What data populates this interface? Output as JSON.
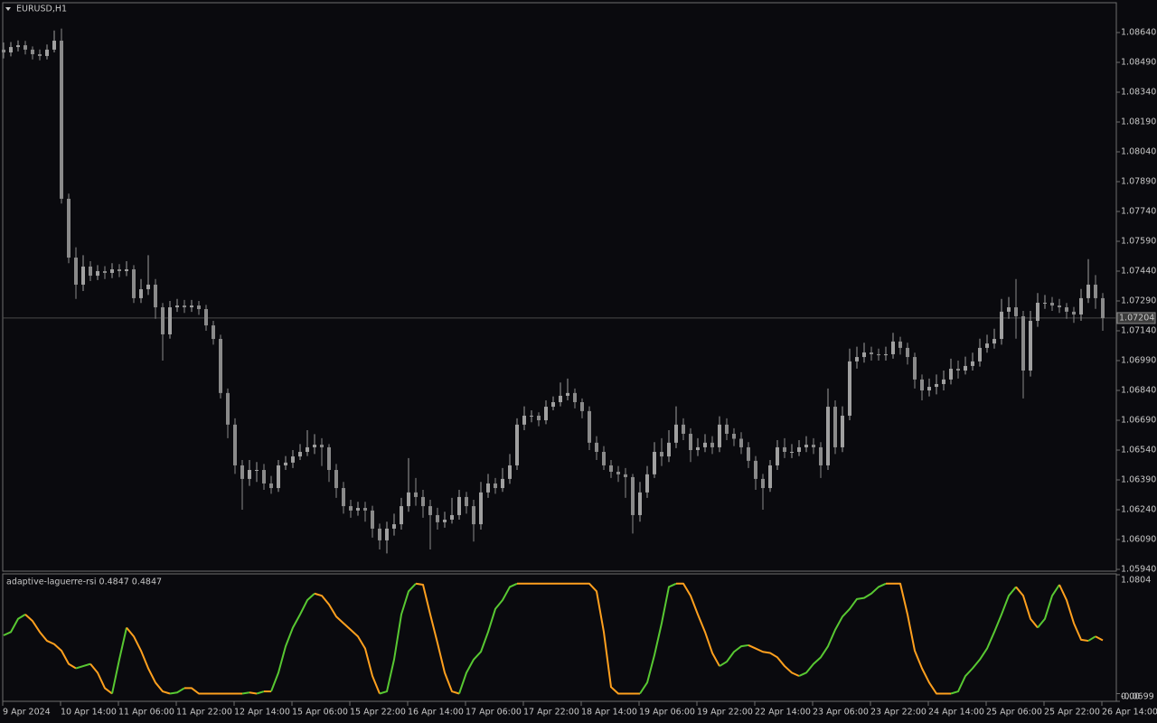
{
  "chart_data": [
    {
      "type": "candlestick",
      "title": "EURUSD,H1",
      "open": [
        1.08554,
        1.0854,
        1.08567,
        1.08576,
        1.08554,
        1.08531,
        1.08522,
        1.08554,
        1.08599,
        1.07804,
        1.07508,
        1.07372,
        1.07463,
        1.07417,
        1.0744,
        1.07431,
        1.07449,
        1.0744,
        1.07449,
        1.07304,
        1.07349,
        1.07372,
        1.07258,
        1.07122,
        1.07258,
        1.07267,
        1.07258,
        1.07267,
        1.07249,
        1.07167,
        1.07099,
        1.06827,
        1.06668,
        1.06463,
        1.06395,
        1.0644,
        1.0644,
        1.06372,
        1.06349,
        1.06463,
        1.06477,
        1.06508,
        1.06531,
        1.06554,
        1.06567,
        1.06554,
        1.0644,
        1.06349,
        1.06258,
        1.06236,
        1.06249,
        1.06236,
        1.06145,
        1.06086,
        1.06145,
        1.06167,
        1.06258,
        1.06327,
        1.06304,
        1.06258,
        1.06213,
        1.06177,
        1.0619,
        1.06213,
        1.06304,
        1.06258,
        1.06167,
        1.06327,
        1.06372,
        1.06349,
        1.06395,
        1.06463,
        1.06668,
        1.06713,
        1.06713,
        1.0669,
        1.06758,
        1.06781,
        1.06813,
        1.06827,
        1.06781,
        1.06736,
        1.06577,
        1.06531,
        1.06463,
        1.06431,
        1.06418,
        1.06404,
        1.06213,
        1.06327,
        1.06418,
        1.06531,
        1.06508,
        1.06577,
        1.06668,
        1.06622,
        1.0654,
        1.06554,
        1.06577,
        1.06554,
        1.06668,
        1.06622,
        1.06597,
        1.06554,
        1.06486,
        1.06395,
        1.06349,
        1.06463,
        1.06554,
        1.06531,
        1.06531,
        1.06554,
        1.06567,
        1.06554,
        1.06463,
        1.06758,
        1.06554,
        1.06713,
        1.06986,
        1.07008,
        1.07031,
        1.07022,
        1.07017,
        1.07022,
        1.07086,
        1.07054,
        1.07008,
        1.06895,
        1.0684,
        1.06858,
        1.06872,
        1.06895,
        1.06949,
        1.0694,
        1.06963,
        1.06986,
        1.07054,
        1.07076,
        1.07099,
        1.07236,
        1.07258,
        1.07213,
        1.0694,
        1.0719,
        1.07281,
        1.07281,
        1.07267,
        1.07258,
        1.07236,
        1.07222,
        1.07304,
        1.07372,
        1.07304
      ],
      "high": [
        1.0859,
        1.08592,
        1.086,
        1.08598,
        1.0857,
        1.08555,
        1.0858,
        1.0865,
        1.0866,
        1.0783,
        1.0756,
        1.0752,
        1.0749,
        1.0747,
        1.07465,
        1.0748,
        1.07475,
        1.0749,
        1.0747,
        1.074,
        1.0752,
        1.074,
        1.0728,
        1.0729,
        1.073,
        1.07295,
        1.07295,
        1.0729,
        1.0727,
        1.0719,
        1.0712,
        1.0685,
        1.067,
        1.0649,
        1.0649,
        1.0648,
        1.0647,
        1.0641,
        1.0649,
        1.0651,
        1.0654,
        1.0657,
        1.0664,
        1.0662,
        1.066,
        1.0657,
        1.0647,
        1.0638,
        1.0629,
        1.0628,
        1.0628,
        1.0626,
        1.0617,
        1.0618,
        1.0622,
        1.063,
        1.065,
        1.064,
        1.0634,
        1.0629,
        1.0625,
        1.0623,
        1.063,
        1.0634,
        1.0633,
        1.0629,
        1.0638,
        1.0642,
        1.064,
        1.0645,
        1.0652,
        1.067,
        1.0676,
        1.0674,
        1.0673,
        1.0679,
        1.0681,
        1.0688,
        1.069,
        1.0685,
        1.068,
        1.0676,
        1.0661,
        1.0656,
        1.0649,
        1.0646,
        1.0645,
        1.0642,
        1.0638,
        1.0646,
        1.0658,
        1.066,
        1.0664,
        1.0676,
        1.067,
        1.0665,
        1.066,
        1.0662,
        1.0661,
        1.0671,
        1.067,
        1.0665,
        1.0663,
        1.0658,
        1.0651,
        1.0642,
        1.0649,
        1.0659,
        1.066,
        1.0657,
        1.0659,
        1.0661,
        1.066,
        1.0658,
        1.0685,
        1.0679,
        1.0676,
        1.0705,
        1.0706,
        1.0708,
        1.0706,
        1.0705,
        1.0706,
        1.0713,
        1.0711,
        1.0708,
        1.0703,
        1.0692,
        1.069,
        1.0692,
        1.0694,
        1.07,
        1.0699,
        1.0701,
        1.0703,
        1.071,
        1.0712,
        1.0715,
        1.073,
        1.0731,
        1.074,
        1.0724,
        1.0724,
        1.0733,
        1.0732,
        1.0731,
        1.073,
        1.0728,
        1.0726,
        1.0735,
        1.075,
        1.0742,
        1.0733
      ],
      "low": [
        1.0851,
        1.0852,
        1.08545,
        1.0853,
        1.08505,
        1.085,
        1.08505,
        1.0854,
        1.0778,
        1.0748,
        1.073,
        1.0734,
        1.0739,
        1.07395,
        1.074,
        1.07405,
        1.0741,
        1.07415,
        1.0728,
        1.0728,
        1.0732,
        1.072,
        1.0699,
        1.071,
        1.07235,
        1.0723,
        1.07235,
        1.0722,
        1.0714,
        1.0707,
        1.068,
        1.066,
        1.0642,
        1.0624,
        1.0636,
        1.0638,
        1.0634,
        1.0632,
        1.0633,
        1.0644,
        1.0645,
        1.0649,
        1.0651,
        1.0652,
        1.0646,
        1.0638,
        1.063,
        1.0622,
        1.062,
        1.0621,
        1.0618,
        1.061,
        1.0604,
        1.0602,
        1.0611,
        1.0614,
        1.0623,
        1.0626,
        1.062,
        1.0604,
        1.0614,
        1.0615,
        1.0617,
        1.0619,
        1.0622,
        1.0608,
        1.0614,
        1.063,
        1.0632,
        1.0633,
        1.0637,
        1.0644,
        1.0664,
        1.0668,
        1.0666,
        1.0667,
        1.0674,
        1.0676,
        1.0679,
        1.0675,
        1.067,
        1.0654,
        1.0649,
        1.0644,
        1.064,
        1.0638,
        1.063,
        1.0612,
        1.0618,
        1.063,
        1.064,
        1.0646,
        1.0648,
        1.0655,
        1.0659,
        1.0648,
        1.0651,
        1.0653,
        1.0652,
        1.0653,
        1.0659,
        1.0656,
        1.0652,
        1.0645,
        1.0634,
        1.0624,
        1.0633,
        1.0644,
        1.065,
        1.065,
        1.0651,
        1.0653,
        1.0652,
        1.064,
        1.0644,
        1.0652,
        1.0653,
        1.0669,
        1.0695,
        1.0698,
        1.0699,
        1.0699,
        1.0699,
        1.07,
        1.0702,
        1.0697,
        1.0685,
        1.0679,
        1.0681,
        1.0682,
        1.0684,
        1.0687,
        1.069,
        1.0692,
        1.0694,
        1.0696,
        1.0703,
        1.0705,
        1.0707,
        1.072,
        1.071,
        1.068,
        1.0691,
        1.0716,
        1.0725,
        1.0724,
        1.0723,
        1.072,
        1.0718,
        1.0719,
        1.0728,
        1.0725,
        1.0714
      ],
      "close": [
        1.0854,
        1.08567,
        1.08576,
        1.08554,
        1.08531,
        1.08522,
        1.08554,
        1.08599,
        1.07804,
        1.07508,
        1.07372,
        1.07463,
        1.07417,
        1.0744,
        1.07431,
        1.07449,
        1.0744,
        1.07449,
        1.07304,
        1.07349,
        1.07372,
        1.07258,
        1.07122,
        1.07258,
        1.07267,
        1.07258,
        1.07267,
        1.07249,
        1.07167,
        1.07099,
        1.06827,
        1.06668,
        1.06463,
        1.06395,
        1.0644,
        1.0644,
        1.06372,
        1.06349,
        1.06463,
        1.06477,
        1.06508,
        1.06531,
        1.06554,
        1.06567,
        1.06554,
        1.0644,
        1.06349,
        1.06258,
        1.06236,
        1.06249,
        1.06236,
        1.06145,
        1.06086,
        1.06145,
        1.06167,
        1.06258,
        1.06327,
        1.06304,
        1.06258,
        1.06213,
        1.06177,
        1.0619,
        1.06213,
        1.06304,
        1.06258,
        1.06167,
        1.06327,
        1.06372,
        1.06349,
        1.06395,
        1.06463,
        1.06668,
        1.06713,
        1.06713,
        1.0669,
        1.06758,
        1.06781,
        1.06813,
        1.06827,
        1.06781,
        1.06736,
        1.06577,
        1.06531,
        1.06463,
        1.06431,
        1.06418,
        1.06404,
        1.06213,
        1.06327,
        1.06418,
        1.06531,
        1.06508,
        1.06577,
        1.06668,
        1.06622,
        1.0654,
        1.06554,
        1.06577,
        1.06554,
        1.06668,
        1.06622,
        1.06597,
        1.06554,
        1.06486,
        1.06395,
        1.06349,
        1.06463,
        1.06554,
        1.06531,
        1.06531,
        1.06554,
        1.06567,
        1.06554,
        1.06463,
        1.06758,
        1.06554,
        1.06713,
        1.06986,
        1.07008,
        1.07031,
        1.07022,
        1.07017,
        1.07022,
        1.07086,
        1.07054,
        1.07008,
        1.06895,
        1.0684,
        1.06858,
        1.06872,
        1.06895,
        1.06949,
        1.0694,
        1.06963,
        1.06986,
        1.07054,
        1.07076,
        1.07099,
        1.07236,
        1.07258,
        1.07213,
        1.0694,
        1.0719,
        1.07281,
        1.07281,
        1.07267,
        1.07258,
        1.07236,
        1.07222,
        1.07304,
        1.07372,
        1.07304,
        1.07204
      ],
      "colors": {
        "up": "#a0a0a0",
        "down": "#8a8a8a"
      },
      "current_price": 1.07204,
      "ylim": [
        1.05931,
        1.0879
      ],
      "yticks": [
        {
          "value": 1.0864,
          "label": "1.08640"
        },
        {
          "value": 1.0849,
          "label": "1.08490"
        },
        {
          "value": 1.0834,
          "label": "1.08340"
        },
        {
          "value": 1.0819,
          "label": "1.08190"
        },
        {
          "value": 1.0804,
          "label": "1.08040"
        },
        {
          "value": 1.0789,
          "label": "1.07890"
        },
        {
          "value": 1.0774,
          "label": "1.07740"
        },
        {
          "value": 1.0759,
          "label": "1.07590"
        },
        {
          "value": 1.0744,
          "label": "1.07440"
        },
        {
          "value": 1.0729,
          "label": "1.07290"
        },
        {
          "value": 1.0714,
          "label": "1.07140"
        },
        {
          "value": 1.0699,
          "label": "1.06990"
        },
        {
          "value": 1.0684,
          "label": "1.06840"
        },
        {
          "value": 1.0669,
          "label": "1.06690"
        },
        {
          "value": 1.0654,
          "label": "1.06540"
        },
        {
          "value": 1.0639,
          "label": "1.06390"
        },
        {
          "value": 1.0624,
          "label": "1.06240"
        },
        {
          "value": 1.0609,
          "label": "1.06090"
        },
        {
          "value": 1.0594,
          "label": "1.05940"
        }
      ],
      "xticks": [
        {
          "value": 0,
          "label": "9 Apr 2024"
        },
        {
          "value": 8,
          "label": "10 Apr 14:00"
        },
        {
          "value": 16,
          "label": "11 Apr 06:00"
        },
        {
          "value": 24,
          "label": "11 Apr 22:00"
        },
        {
          "value": 32,
          "label": "12 Apr 14:00"
        },
        {
          "value": 40,
          "label": "15 Apr 06:00"
        },
        {
          "value": 48,
          "label": "15 Apr 22:00"
        },
        {
          "value": 56,
          "label": "16 Apr 14:00"
        },
        {
          "value": 64,
          "label": "17 Apr 06:00"
        },
        {
          "value": 72,
          "label": "17 Apr 22:00"
        },
        {
          "value": 80,
          "label": "18 Apr 14:00"
        },
        {
          "value": 88,
          "label": "19 Apr 06:00"
        },
        {
          "value": 96,
          "label": "19 Apr 22:00"
        },
        {
          "value": 104,
          "label": "22 Apr 14:00"
        },
        {
          "value": 112,
          "label": "23 Apr 06:00"
        },
        {
          "value": 120,
          "label": "23 Apr 22:00"
        },
        {
          "value": 128,
          "label": "24 Apr 14:00"
        },
        {
          "value": 136,
          "label": "25 Apr 06:00"
        },
        {
          "value": 144,
          "label": "25 Apr 22:00"
        },
        {
          "value": 152,
          "label": "26 Apr 14:00"
        }
      ]
    },
    {
      "type": "line",
      "title": "adaptive-laguerre-rsi 0.4847 0.4847",
      "values": [
        0.53,
        0.56,
        0.68,
        0.72,
        0.66,
        0.56,
        0.48,
        0.45,
        0.39,
        0.27,
        0.23,
        0.25,
        0.27,
        0.19,
        0.05,
        0,
        0.31,
        0.6,
        0.52,
        0.39,
        0.23,
        0.1,
        0.02,
        0,
        0.01,
        0.05,
        0.05,
        0,
        0,
        0,
        0,
        0,
        0,
        0,
        0.01,
        0,
        0.02,
        0.02,
        0.19,
        0.43,
        0.6,
        0.72,
        0.85,
        0.91,
        0.89,
        0.81,
        0.7,
        0.64,
        0.58,
        0.52,
        0.41,
        0.16,
        0,
        0.02,
        0.31,
        0.72,
        0.93,
        1,
        0.99,
        0.72,
        0.46,
        0.19,
        0.02,
        0,
        0.19,
        0.31,
        0.38,
        0.56,
        0.77,
        0.85,
        0.97,
        1,
        1,
        1,
        1,
        1,
        1,
        1,
        1,
        1,
        1,
        1,
        0.93,
        0.56,
        0.06,
        0,
        0,
        0,
        0,
        0.1,
        0.35,
        0.64,
        0.97,
        1,
        1,
        0.89,
        0.72,
        0.56,
        0.37,
        0.25,
        0.29,
        0.38,
        0.43,
        0.44,
        0.41,
        0.38,
        0.37,
        0.33,
        0.25,
        0.19,
        0.16,
        0.19,
        0.27,
        0.33,
        0.43,
        0.58,
        0.7,
        0.77,
        0.86,
        0.87,
        0.91,
        0.97,
        1,
        1,
        1,
        0.72,
        0.39,
        0.23,
        0.1,
        0,
        0,
        0,
        0.02,
        0.16,
        0.23,
        0.31,
        0.41,
        0.56,
        0.72,
        0.89,
        0.97,
        0.89,
        0.68,
        0.6,
        0.68,
        0.89,
        0.99,
        0.85,
        0.64,
        0.49,
        0.48,
        0.52,
        0.4847
      ],
      "colors": {
        "up": "#58c832",
        "down": "#ffa01e"
      },
      "ylim": [
        -0.0699,
        1.0804
      ],
      "yticks": [
        1.0804,
        {
          "value": 0,
          "label": "0.00"
        },
        -0.0699
      ]
    }
  ]
}
